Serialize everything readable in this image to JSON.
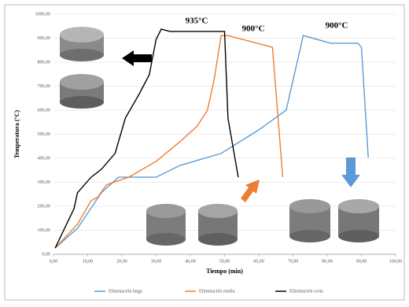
{
  "chart_data": {
    "type": "line",
    "x_label": "Tiempo (min)",
    "y_label": "Temperatura (°C)",
    "annotations": [
      "935°C",
      "900°C",
      "900°C"
    ],
    "xlim": [
      0,
      100
    ],
    "ylim": [
      0,
      1000
    ],
    "xticks": [
      {
        "value": 0,
        "label": "0,00"
      },
      {
        "value": 10,
        "label": "10,00"
      },
      {
        "value": 20,
        "label": "20,00"
      },
      {
        "value": 30,
        "label": "30,00"
      },
      {
        "value": 40,
        "label": "40,00"
      },
      {
        "value": 50,
        "label": "50,00"
      },
      {
        "value": 60,
        "label": "60,00"
      },
      {
        "value": 70,
        "label": "70,00"
      },
      {
        "value": 80,
        "label": "80,00"
      },
      {
        "value": 90,
        "label": "90,00"
      },
      {
        "value": 100,
        "label": "100,00"
      }
    ],
    "yticks": [
      {
        "value": 0,
        "label": "0,00"
      },
      {
        "value": 100,
        "label": "100,00"
      },
      {
        "value": 200,
        "label": "200,00"
      },
      {
        "value": 300,
        "label": "300,00"
      },
      {
        "value": 400,
        "label": "400,00"
      },
      {
        "value": 500,
        "label": "500,00"
      },
      {
        "value": 600,
        "label": "600,00"
      },
      {
        "value": 700,
        "label": "700,00"
      },
      {
        "value": 800,
        "label": "800,00"
      },
      {
        "value": 900,
        "label": "900,00"
      },
      {
        "value": 1000,
        "label": "1000,00"
      }
    ],
    "grid": true,
    "series": [
      {
        "name": "Eliminación larga",
        "color": "#5b9bd5",
        "x": [
          0.5,
          7,
          14,
          19,
          30,
          37,
          49,
          60,
          68,
          73,
          81,
          89,
          90,
          92
        ],
        "values": [
          26,
          108,
          256,
          321,
          321,
          370,
          420,
          518,
          600,
          911,
          879,
          879,
          862,
          403
        ]
      },
      {
        "name": "Eliminación media",
        "color": "#ed7d31",
        "x": [
          0.5,
          7,
          11,
          13,
          15.5,
          22,
          30,
          37,
          42,
          45,
          47,
          49,
          51,
          64,
          67
        ],
        "values": [
          26,
          125,
          223,
          239,
          289,
          321,
          387,
          469,
          534,
          600,
          731,
          911,
          911,
          862,
          321
        ]
      },
      {
        "name": "Eliminación corta",
        "color": "#000000",
        "x": [
          0.5,
          6,
          7,
          11,
          14,
          18,
          21,
          25,
          28,
          30,
          31.5,
          34,
          39.5,
          50,
          51,
          54
        ],
        "values": [
          26,
          190,
          256,
          321,
          354,
          420,
          567,
          666,
          748,
          895,
          938,
          928,
          928,
          928,
          567,
          321
        ]
      }
    ]
  }
}
